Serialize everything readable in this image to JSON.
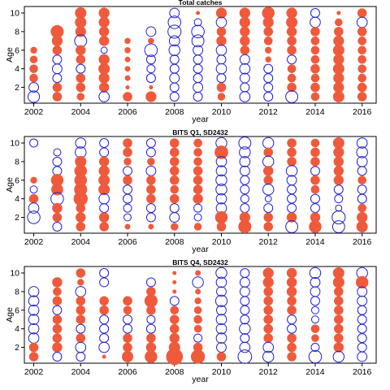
{
  "chart_data": [
    {
      "type": "scatter",
      "title": "Total catches",
      "xlabel": "year",
      "ylabel": "Age",
      "xlim": [
        2001.6,
        2016.6
      ],
      "ylim": [
        0.3,
        10.7
      ],
      "xticks": [
        2002,
        2004,
        2006,
        2008,
        2010,
        2012,
        2014,
        2016
      ],
      "yticks": [
        2,
        4,
        6,
        8,
        10
      ],
      "series_colors": {
        "positive": "#ef5a3c",
        "negative": "#1f1fd6"
      },
      "rows": [
        {
          "age": 10,
          "values": [
            0,
            0,
            0.45,
            0.4,
            0,
            0,
            -0.35,
            0.05,
            0.4,
            0.4,
            0.55,
            0.4,
            -0.3,
            0.05,
            0.3
          ]
        },
        {
          "age": 9,
          "values": [
            0,
            0,
            0.45,
            0.4,
            0,
            0,
            -0.6,
            -0.2,
            -0.4,
            0.4,
            0.4,
            0.45,
            -0.4,
            0.2,
            -0.4
          ]
        },
        {
          "age": 8,
          "values": [
            0,
            0.6,
            0.4,
            0.35,
            0,
            -0.35,
            -0.65,
            -0.6,
            0.3,
            0.35,
            0.3,
            0.35,
            0.3,
            0.3,
            0.3
          ]
        },
        {
          "age": 7,
          "values": [
            0,
            0.4,
            -0.55,
            0.35,
            0.12,
            0.12,
            -0.4,
            -0.55,
            0.35,
            0.35,
            0.25,
            0.3,
            0.25,
            0.4,
            0.25
          ]
        },
        {
          "age": 6,
          "values": [
            0.15,
            0.3,
            0.35,
            -0.15,
            0.12,
            -0.6,
            -0.45,
            -0.35,
            -0.4,
            0.3,
            0.15,
            0.3,
            0.25,
            0.45,
            0.25
          ]
        },
        {
          "age": 5,
          "values": [
            0.2,
            -0.3,
            0.3,
            0.4,
            0.1,
            -0.3,
            -0.3,
            -0.3,
            -0.3,
            -0.35,
            0.12,
            -0.3,
            0.25,
            0.4,
            0.25
          ]
        },
        {
          "age": 4,
          "values": [
            0.25,
            -0.35,
            -0.3,
            0.45,
            0.1,
            -0.25,
            -0.3,
            -0.3,
            -0.4,
            -0.4,
            -0.3,
            0.25,
            0.3,
            0.45,
            0.25
          ]
        },
        {
          "age": 3,
          "values": [
            0.25,
            -0.3,
            0.3,
            0.4,
            0.1,
            -0.3,
            -0.35,
            -0.3,
            -0.3,
            -0.35,
            -0.3,
            0.25,
            0.25,
            0.4,
            0.25
          ]
        },
        {
          "age": 2,
          "values": [
            -0.35,
            0.3,
            0.3,
            0.35,
            0.05,
            0.05,
            -0.3,
            -0.35,
            0.3,
            -0.3,
            -0.3,
            0.3,
            0.3,
            0.4,
            0.3
          ]
        },
        {
          "age": 1,
          "values": [
            -0.5,
            0.3,
            0.2,
            -0.4,
            0.3,
            0.4,
            -0.3,
            -0.3,
            0.2,
            -0.4,
            -0.3,
            -0.55,
            0.25,
            0.45,
            0.3
          ]
        }
      ]
    },
    {
      "type": "scatter",
      "title": "BITS Q1, SD2432",
      "xlabel": "year",
      "ylabel": "Age",
      "xlim": [
        2001.6,
        2016.6
      ],
      "ylim": [
        0.3,
        10.7
      ],
      "xticks": [
        2002,
        2004,
        2006,
        2008,
        2010,
        2012,
        2014,
        2016
      ],
      "yticks": [
        2,
        4,
        6,
        8,
        10
      ],
      "series_colors": {
        "positive": "#ef5a3c",
        "negative": "#1f1fd6"
      },
      "rows": [
        {
          "age": 10,
          "values": [
            -0.25,
            0,
            -0.4,
            -0.3,
            0.3,
            -0.3,
            0.3,
            0.25,
            -0.45,
            -0.55,
            -0.45,
            0.3,
            0.25,
            0.45,
            -0.4
          ]
        },
        {
          "age": 9,
          "values": [
            0,
            -0.2,
            -0.45,
            -0.3,
            0.3,
            -0.3,
            0.3,
            0.25,
            0.65,
            -0.45,
            0.3,
            0.3,
            0.3,
            0.4,
            -0.45
          ]
        },
        {
          "age": 8,
          "values": [
            0,
            -0.3,
            0.45,
            0.35,
            0.2,
            0.2,
            0.3,
            0.25,
            -0.4,
            -0.4,
            -0.45,
            0.3,
            0.3,
            0.35,
            -0.4
          ]
        },
        {
          "age": 7,
          "values": [
            0,
            -0.3,
            0.55,
            0.4,
            -0.3,
            -0.35,
            0.3,
            0.3,
            -0.4,
            -0.35,
            0.35,
            -0.45,
            -0.3,
            0.35,
            -0.3
          ]
        },
        {
          "age": 6,
          "values": [
            0.15,
            0.55,
            0.55,
            0.45,
            0.3,
            0.3,
            0.3,
            0.3,
            -0.45,
            -0.3,
            0.3,
            -0.35,
            0.3,
            0.35,
            0.25
          ]
        },
        {
          "age": 5,
          "values": [
            -0.2,
            0.5,
            0.6,
            0.45,
            -0.3,
            0.3,
            0.25,
            0.3,
            -0.45,
            -0.3,
            -0.45,
            -0.3,
            0.25,
            -0.3,
            -0.3
          ]
        },
        {
          "age": 4,
          "values": [
            0.3,
            -0.6,
            0.7,
            -0.4,
            -0.3,
            0.3,
            0.3,
            0.35,
            -0.4,
            -0.25,
            -0.15,
            -0.3,
            -0.3,
            -0.25,
            -0.3
          ]
        },
        {
          "age": 3,
          "values": [
            -0.4,
            0.35,
            0.3,
            -0.3,
            -0.25,
            -0.3,
            -0.3,
            -0.25,
            -0.4,
            -0.3,
            -0.3,
            -0.3,
            -0.3,
            -0.15,
            0.25
          ]
        },
        {
          "age": 2,
          "values": [
            -0.6,
            0.3,
            0.35,
            0.35,
            -0.2,
            -0.3,
            -0.35,
            -0.2,
            0.55,
            0.4,
            0.3,
            0.35,
            0.35,
            -0.65,
            0.4
          ]
        },
        {
          "age": 1,
          "values": [
            0,
            -0.3,
            0.3,
            0.3,
            0.1,
            0.1,
            0.2,
            0.2,
            0.3,
            0.6,
            0.3,
            -0.55,
            0.55,
            -0.55,
            0.45
          ]
        }
      ]
    },
    {
      "type": "scatter",
      "title": "BITS Q4, SD2432",
      "xlabel": "year",
      "ylabel": "Age",
      "xlim": [
        2001.6,
        2016.6
      ],
      "ylim": [
        0.3,
        10.7
      ],
      "xticks": [
        2002,
        2004,
        2006,
        2008,
        2010,
        2012,
        2014,
        2016
      ],
      "yticks": [
        2,
        4,
        6,
        8,
        10
      ],
      "series_colors": {
        "positive": "#ef5a3c",
        "negative": "#1f1fd6"
      },
      "rows": [
        {
          "age": 10,
          "values": [
            0,
            0,
            0.3,
            -0.3,
            0,
            0,
            0.05,
            0.1,
            -0.45,
            -0.3,
            0.4,
            0.35,
            -0.45,
            0.45,
            -0.45
          ]
        },
        {
          "age": 9,
          "values": [
            0,
            0.35,
            0.15,
            -0.3,
            0,
            -0.3,
            0.05,
            -0.45,
            -0.4,
            -0.35,
            0.4,
            0.35,
            -0.35,
            0.45,
            0.55
          ]
        },
        {
          "age": 8,
          "values": [
            -0.4,
            0.25,
            -0.4,
            0,
            0,
            0.3,
            0.05,
            0.1,
            -0.35,
            -0.35,
            0.3,
            0.35,
            -0.35,
            0.3,
            -0.35
          ]
        },
        {
          "age": 7,
          "values": [
            -0.4,
            0.3,
            0.3,
            0.3,
            0.3,
            0.6,
            -0.3,
            0.15,
            -0.5,
            -0.3,
            0.3,
            0.3,
            -0.3,
            0.3,
            -0.35
          ]
        },
        {
          "age": 6,
          "values": [
            -0.4,
            -0.3,
            0.3,
            0.3,
            0.25,
            0.3,
            0.25,
            0.2,
            -0.35,
            -0.3,
            0.3,
            0.3,
            -0.2,
            0.3,
            -0.3
          ]
        },
        {
          "age": 5,
          "values": [
            -0.4,
            0.3,
            0.3,
            -0.3,
            -0.3,
            -0.25,
            0.3,
            0.25,
            -0.4,
            -0.3,
            0.3,
            -0.3,
            -0.2,
            0.3,
            -0.3
          ]
        },
        {
          "age": 4,
          "values": [
            -0.4,
            0.3,
            -0.3,
            -0.3,
            -0.3,
            -0.3,
            0.3,
            0.2,
            -0.4,
            -0.45,
            0.3,
            -0.3,
            0.25,
            0.3,
            -0.3
          ]
        },
        {
          "age": 3,
          "values": [
            -0.4,
            0.3,
            0.3,
            -0.3,
            0.3,
            0.3,
            0.35,
            -0.25,
            -0.4,
            -0.3,
            0.3,
            0.3,
            0.2,
            0.3,
            -0.3
          ]
        },
        {
          "age": 2,
          "values": [
            0.3,
            0.35,
            -0.4,
            -0.4,
            0.3,
            0.35,
            0.45,
            0.3,
            -0.35,
            -0.4,
            -0.4,
            0.3,
            -0.25,
            0.35,
            -0.3
          ]
        },
        {
          "age": 1,
          "values": [
            0.3,
            -0.3,
            -0.3,
            0.05,
            0.45,
            0.55,
            1.0,
            0.7,
            0.3,
            -0.7,
            -0.45,
            0.3,
            -0.6,
            -0.45,
            -0.35
          ]
        }
      ]
    }
  ]
}
